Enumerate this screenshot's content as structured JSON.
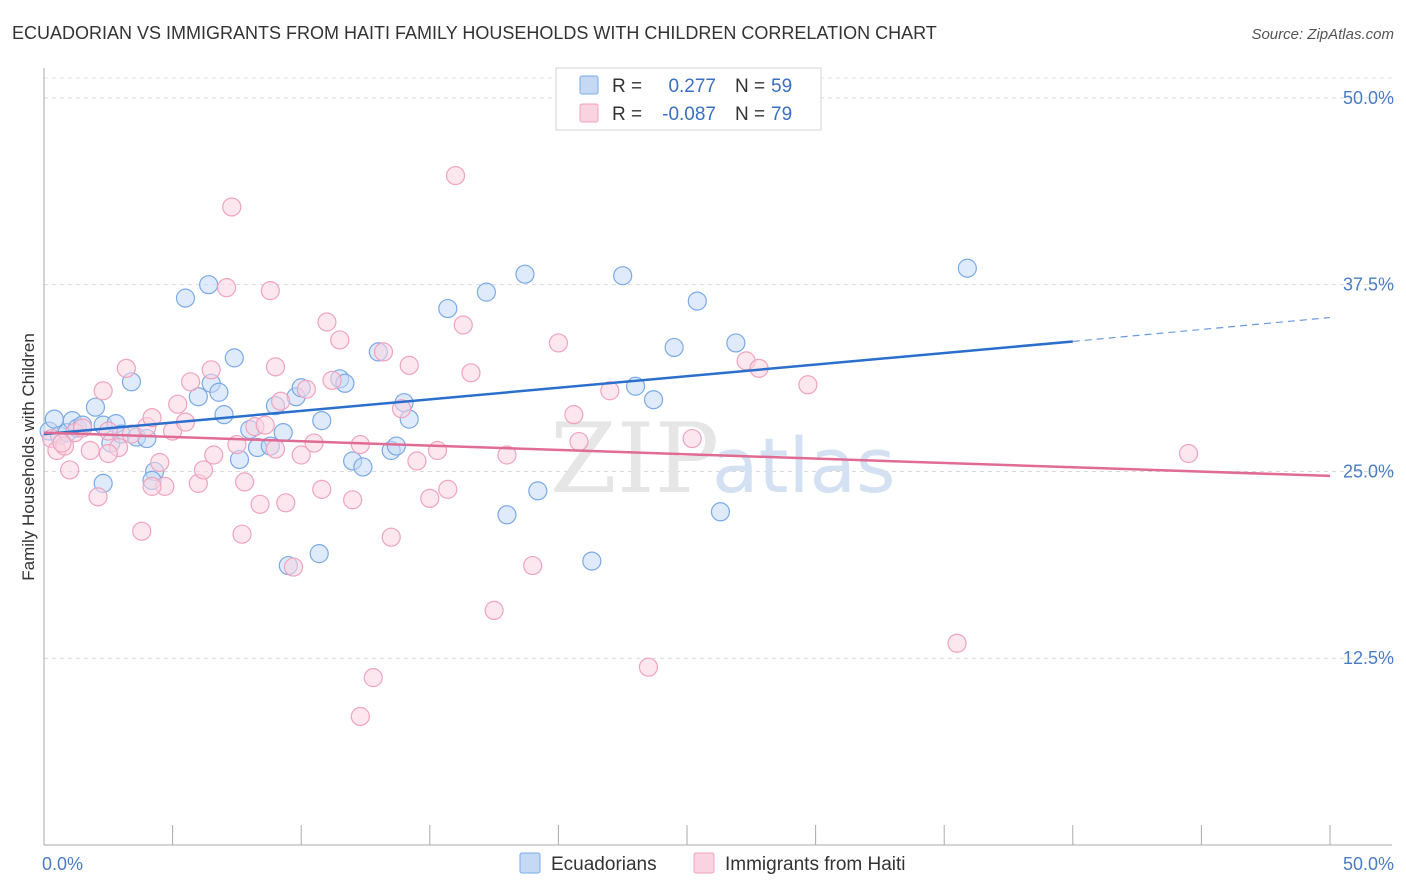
{
  "chart_data": {
    "type": "scatter",
    "title": "ECUADORIAN VS IMMIGRANTS FROM HAITI FAMILY HOUSEHOLDS WITH CHILDREN CORRELATION CHART",
    "source": "Source: ZipAtlas.com",
    "xlabel": "",
    "ylabel": "Family Households with Children",
    "xlim": [
      0,
      50
    ],
    "ylim": [
      0,
      52
    ],
    "x_tick_labels": [
      "0.0%",
      "50.0%"
    ],
    "y_ticks": [
      12.5,
      25.0,
      37.5,
      50.0
    ],
    "y_tick_labels": [
      "12.5%",
      "25.0%",
      "37.5%",
      "50.0%"
    ],
    "grid": "horizontal dashed",
    "watermark": {
      "zip": "ZIP",
      "atlas": "atlas"
    },
    "legend": {
      "r_label": "R =",
      "n_label": "N =",
      "entries": [
        {
          "r": "0.277",
          "n": "59"
        },
        {
          "r": "-0.087",
          "n": "79"
        }
      ]
    },
    "series": [
      {
        "name": "Ecuadorians",
        "color": "#7aaae8",
        "fill": "#c5d9f5",
        "line_color": "#2b6fcc",
        "trend": {
          "x0": 0,
          "y0": 27.5,
          "x1": 40,
          "y1": 33.7,
          "dash_to": 50,
          "dash_y": 35.3
        },
        "points": [
          [
            0.2,
            27.7
          ],
          [
            0.4,
            28.5
          ],
          [
            0.6,
            27.4
          ],
          [
            0.9,
            27.6
          ],
          [
            1.1,
            28.4
          ],
          [
            1.3,
            27.9
          ],
          [
            1.5,
            28.1
          ],
          [
            2.0,
            29.3
          ],
          [
            2.3,
            28.1
          ],
          [
            2.6,
            26.9
          ],
          [
            2.8,
            28.2
          ],
          [
            3.0,
            27.5
          ],
          [
            3.4,
            31.0
          ],
          [
            3.6,
            27.3
          ],
          [
            4.0,
            27.2
          ],
          [
            4.3,
            25.0
          ],
          [
            4.2,
            24.4
          ],
          [
            5.5,
            36.6
          ],
          [
            6.0,
            30.0
          ],
          [
            6.4,
            37.5
          ],
          [
            6.5,
            30.9
          ],
          [
            6.8,
            30.3
          ],
          [
            7.0,
            28.8
          ],
          [
            7.4,
            32.6
          ],
          [
            7.6,
            25.8
          ],
          [
            8.0,
            27.8
          ],
          [
            8.3,
            26.6
          ],
          [
            8.8,
            26.7
          ],
          [
            9.0,
            29.4
          ],
          [
            9.3,
            27.6
          ],
          [
            9.5,
            18.7
          ],
          [
            9.8,
            30.0
          ],
          [
            10.0,
            30.6
          ],
          [
            10.8,
            28.4
          ],
          [
            10.7,
            19.5
          ],
          [
            11.5,
            31.2
          ],
          [
            11.7,
            30.9
          ],
          [
            12.0,
            25.7
          ],
          [
            12.4,
            25.3
          ],
          [
            13.0,
            33.0
          ],
          [
            13.5,
            26.4
          ],
          [
            13.7,
            26.7
          ],
          [
            14.0,
            29.6
          ],
          [
            14.2,
            28.5
          ],
          [
            15.7,
            35.9
          ],
          [
            17.2,
            37.0
          ],
          [
            18.0,
            22.1
          ],
          [
            18.7,
            38.2
          ],
          [
            19.2,
            23.7
          ],
          [
            21.3,
            19.0
          ],
          [
            22.5,
            38.1
          ],
          [
            23.0,
            30.7
          ],
          [
            23.7,
            29.8
          ],
          [
            24.5,
            33.3
          ],
          [
            25.4,
            36.4
          ],
          [
            26.3,
            22.3
          ],
          [
            26.9,
            33.6
          ],
          [
            35.9,
            38.6
          ],
          [
            2.3,
            24.2
          ]
        ]
      },
      {
        "name": "Immigrants from Haiti",
        "color": "#f0a3bf",
        "fill": "#f9d3e0",
        "line_color": "#e06c94",
        "trend": {
          "x0": 0,
          "y0": 27.6,
          "x1": 50,
          "y1": 24.7
        },
        "points": [
          [
            0.3,
            27.2
          ],
          [
            0.5,
            26.4
          ],
          [
            0.8,
            26.7
          ],
          [
            1.0,
            25.1
          ],
          [
            1.2,
            27.6
          ],
          [
            1.5,
            27.9
          ],
          [
            1.8,
            26.4
          ],
          [
            2.1,
            23.3
          ],
          [
            2.3,
            30.4
          ],
          [
            2.5,
            27.7
          ],
          [
            2.9,
            26.6
          ],
          [
            3.2,
            31.9
          ],
          [
            3.4,
            27.5
          ],
          [
            3.8,
            21.0
          ],
          [
            4.0,
            28.0
          ],
          [
            4.2,
            28.6
          ],
          [
            4.5,
            25.6
          ],
          [
            4.7,
            24.0
          ],
          [
            5.0,
            27.7
          ],
          [
            5.2,
            29.5
          ],
          [
            5.5,
            28.3
          ],
          [
            5.7,
            31.0
          ],
          [
            6.0,
            24.2
          ],
          [
            6.2,
            25.1
          ],
          [
            6.5,
            31.8
          ],
          [
            6.6,
            26.1
          ],
          [
            7.1,
            37.3
          ],
          [
            7.3,
            42.7
          ],
          [
            7.5,
            26.8
          ],
          [
            7.7,
            20.8
          ],
          [
            7.8,
            24.3
          ],
          [
            8.2,
            28.0
          ],
          [
            8.4,
            22.8
          ],
          [
            8.6,
            28.1
          ],
          [
            8.8,
            37.1
          ],
          [
            9.0,
            32.0
          ],
          [
            9.2,
            29.7
          ],
          [
            9.4,
            22.9
          ],
          [
            9.7,
            18.6
          ],
          [
            10.0,
            26.1
          ],
          [
            10.2,
            30.5
          ],
          [
            10.5,
            26.9
          ],
          [
            10.8,
            23.8
          ],
          [
            11.0,
            35.0
          ],
          [
            11.2,
            31.1
          ],
          [
            11.5,
            33.8
          ],
          [
            12.0,
            23.1
          ],
          [
            12.3,
            26.8
          ],
          [
            12.8,
            11.2
          ],
          [
            13.2,
            33.0
          ],
          [
            13.5,
            20.6
          ],
          [
            13.9,
            29.2
          ],
          [
            14.2,
            32.1
          ],
          [
            14.5,
            25.7
          ],
          [
            15.0,
            23.2
          ],
          [
            15.3,
            26.4
          ],
          [
            15.7,
            23.8
          ],
          [
            16.0,
            44.8
          ],
          [
            16.3,
            34.8
          ],
          [
            16.6,
            31.6
          ],
          [
            17.5,
            15.7
          ],
          [
            18.0,
            26.1
          ],
          [
            19.0,
            18.7
          ],
          [
            20.0,
            33.6
          ],
          [
            20.6,
            28.8
          ],
          [
            20.8,
            27.0
          ],
          [
            22.0,
            30.4
          ],
          [
            23.5,
            11.9
          ],
          [
            25.2,
            27.2
          ],
          [
            27.3,
            32.4
          ],
          [
            27.8,
            31.9
          ],
          [
            29.7,
            30.8
          ],
          [
            35.5,
            13.5
          ],
          [
            44.5,
            26.2
          ],
          [
            12.3,
            8.6
          ],
          [
            4.2,
            24.0
          ],
          [
            9.0,
            26.5
          ],
          [
            2.5,
            26.2
          ],
          [
            0.7,
            26.9
          ]
        ]
      }
    ]
  }
}
